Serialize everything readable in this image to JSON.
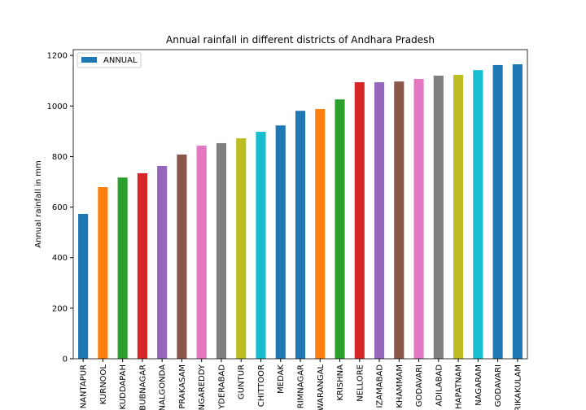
{
  "chart_data": {
    "type": "bar",
    "title": "Annual rainfall in different districts of Andhara Pradesh",
    "y_label": "Annual rainfall in mm",
    "categories": [
      "NANTAPUR",
      "KURNOOL",
      "KUDDAPAH",
      "BUBNAGAR",
      "NALGONDA",
      "PRAKASAM",
      "NGAREDDY",
      "YDERABAD",
      "GUNTUR",
      "CHITTOOR",
      "MEDAK",
      "RIMNAGAR",
      "WARANGAL",
      "KRISHNA",
      "NELLORE",
      "IZAMABAD",
      "KHAMMAM",
      "GODAVARI",
      "ADILABAD",
      "HAPATNAM",
      "NAGARAM",
      "GODAVARI",
      "RIKAKULAM"
    ],
    "series": [
      {
        "name": "ANNUAL",
        "color": "#1f77b4",
        "values": [
          573,
          679,
          717,
          734,
          763,
          808,
          843,
          853,
          872,
          898,
          923,
          981,
          988,
          1026,
          1094,
          1094,
          1097,
          1107,
          1120,
          1123,
          1142,
          1162,
          1165
        ]
      }
    ],
    "bar_colors": [
      "#1f77b4",
      "#ff7f0e",
      "#2ca02c",
      "#d62728",
      "#9467bd",
      "#8c564b",
      "#e377c2",
      "#7f7f7f",
      "#bcbd22",
      "#17becf",
      "#1f77b4",
      "#1f77b4",
      "#ff7f0e",
      "#2ca02c",
      "#d62728",
      "#9467bd",
      "#8c564b",
      "#e377c2",
      "#7f7f7f",
      "#bcbd22",
      "#17becf",
      "#1f77b4",
      "#1f77b4"
    ],
    "ylim": [
      0,
      1223
    ],
    "yticks": [
      0,
      200,
      400,
      600,
      800,
      1000,
      1200
    ],
    "legend": "upper left",
    "grid": false
  }
}
